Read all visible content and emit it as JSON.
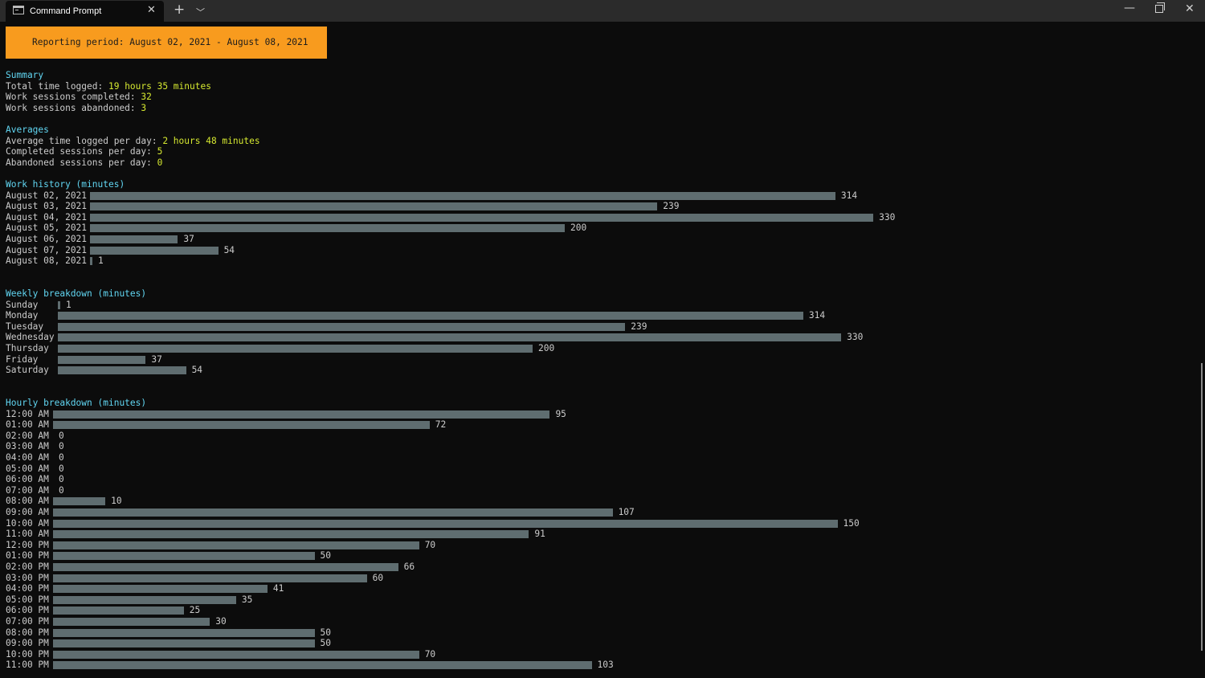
{
  "tab": {
    "title": "Command Prompt",
    "icon": "console-icon"
  },
  "banner": "Reporting period: August 02, 2021 - August 08, 2021",
  "summary": {
    "heading": "Summary",
    "total_label": "Total time logged: ",
    "total_value": "19 hours 35 minutes",
    "completed_label": "Work sessions completed: ",
    "completed_value": "32",
    "abandoned_label": "Work sessions abandoned: ",
    "abandoned_value": "3"
  },
  "averages": {
    "heading": "Averages",
    "avg_time_label": "Average time logged per day: ",
    "avg_time_value": "2 hours 48 minutes",
    "completed_label": "Completed sessions per day: ",
    "completed_value": "5",
    "abandoned_label": "Abandoned sessions per day: ",
    "abandoned_value": "0"
  },
  "work_history": {
    "heading": "Work history (minutes)",
    "rows": [
      {
        "label": "August 02, 2021",
        "value": 314
      },
      {
        "label": "August 03, 2021",
        "value": 239
      },
      {
        "label": "August 04, 2021",
        "value": 330
      },
      {
        "label": "August 05, 2021",
        "value": 200
      },
      {
        "label": "August 06, 2021",
        "value": 37
      },
      {
        "label": "August 07, 2021",
        "value": 54
      },
      {
        "label": "August 08, 2021",
        "value": 1
      }
    ]
  },
  "weekly": {
    "heading": "Weekly breakdown (minutes)",
    "rows": [
      {
        "label": "Sunday",
        "value": 1
      },
      {
        "label": "Monday",
        "value": 314
      },
      {
        "label": "Tuesday",
        "value": 239
      },
      {
        "label": "Wednesday",
        "value": 330
      },
      {
        "label": "Thursday",
        "value": 200
      },
      {
        "label": "Friday",
        "value": 37
      },
      {
        "label": "Saturday",
        "value": 54
      }
    ]
  },
  "hourly": {
    "heading": "Hourly breakdown (minutes)",
    "rows": [
      {
        "label": "12:00 AM",
        "value": 95
      },
      {
        "label": "01:00 AM",
        "value": 72
      },
      {
        "label": "02:00 AM",
        "value": 0
      },
      {
        "label": "03:00 AM",
        "value": 0
      },
      {
        "label": "04:00 AM",
        "value": 0
      },
      {
        "label": "05:00 AM",
        "value": 0
      },
      {
        "label": "06:00 AM",
        "value": 0
      },
      {
        "label": "07:00 AM",
        "value": 0
      },
      {
        "label": "08:00 AM",
        "value": 10
      },
      {
        "label": "09:00 AM",
        "value": 107
      },
      {
        "label": "10:00 AM",
        "value": 150
      },
      {
        "label": "11:00 AM",
        "value": 91
      },
      {
        "label": "12:00 PM",
        "value": 70
      },
      {
        "label": "01:00 PM",
        "value": 50
      },
      {
        "label": "02:00 PM",
        "value": 66
      },
      {
        "label": "03:00 PM",
        "value": 60
      },
      {
        "label": "04:00 PM",
        "value": 41
      },
      {
        "label": "05:00 PM",
        "value": 35
      },
      {
        "label": "06:00 PM",
        "value": 25
      },
      {
        "label": "07:00 PM",
        "value": 30
      },
      {
        "label": "08:00 PM",
        "value": 50
      },
      {
        "label": "09:00 PM",
        "value": 50
      },
      {
        "label": "10:00 PM",
        "value": 70
      },
      {
        "label": "11:00 PM",
        "value": 103
      }
    ]
  },
  "colors": {
    "banner": "#f89b1e",
    "heading": "#61d6f2",
    "value": "#d5e830",
    "bar": "#5f6d70"
  }
}
